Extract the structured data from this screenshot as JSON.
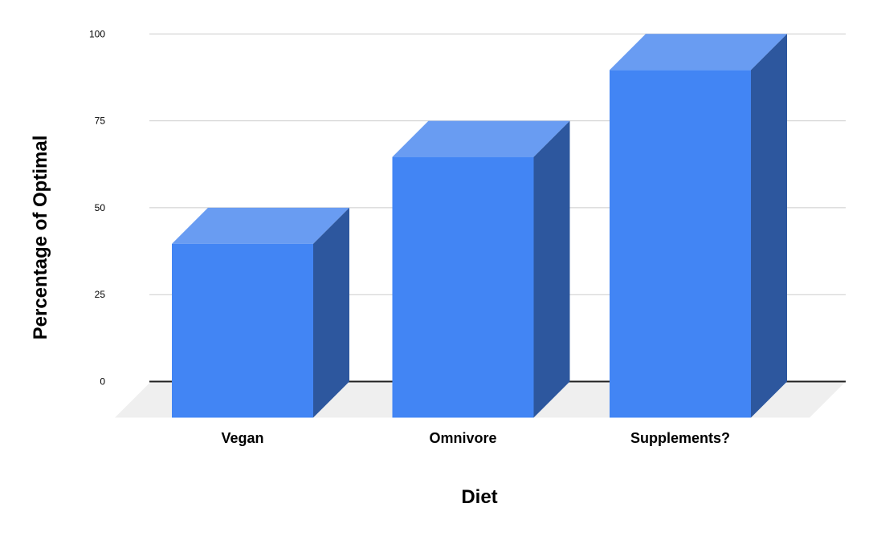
{
  "chart_data": {
    "type": "bar",
    "subtype": "3d-column",
    "title": "",
    "xlabel": "Diet",
    "ylabel": "Percentage of Optimal",
    "categories": [
      "Vegan",
      "Omnivore",
      "Supplements?"
    ],
    "values": [
      50,
      75,
      100
    ],
    "ylim": [
      0,
      100
    ],
    "yticks": [
      0,
      25,
      50,
      75,
      100
    ],
    "grid": true,
    "legend_position": "none",
    "colors": {
      "bar_front": "#4285F4",
      "bar_top": "#699CF2",
      "bar_side": "#2D579E",
      "floor": "#EFEFEF",
      "gridline": "#CCCCCC",
      "baseline": "#212121",
      "tick_text": "#000000",
      "label_text": "#000000",
      "background": "#FFFFFF"
    }
  }
}
